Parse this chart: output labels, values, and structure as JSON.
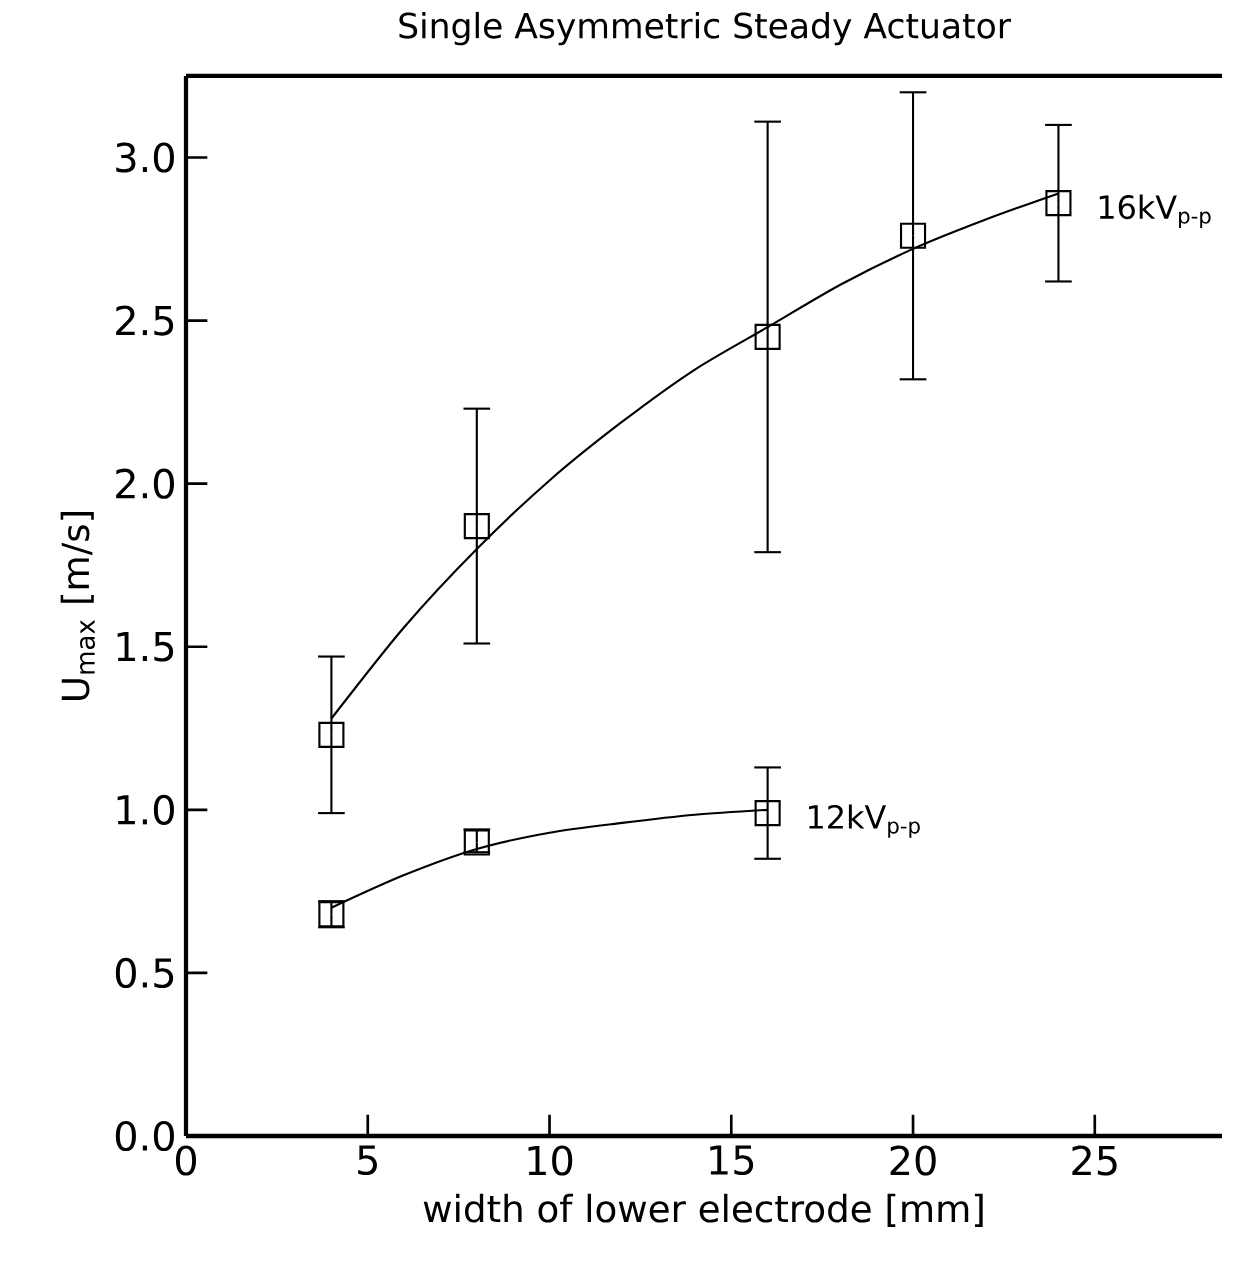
{
  "chart_data": {
    "type": "scatter",
    "title": "Single Asymmetric Steady Actuator",
    "xlabel": "width of lower electrode [mm]",
    "ylabel": "U$_{max}$ [m/s]",
    "xlim": [
      0,
      28.5
    ],
    "ylim": [
      0,
      3.25
    ],
    "xticks": [
      0,
      5,
      10,
      15,
      20,
      25
    ],
    "yticks": [
      {
        "value": 0,
        "label": "0.0"
      },
      {
        "value": 0.5,
        "label": "0.5"
      },
      {
        "value": 1,
        "label": "1.0"
      },
      {
        "value": 1.5,
        "label": "1.5"
      },
      {
        "value": 2,
        "label": "2.0"
      },
      {
        "value": 2.5,
        "label": "2.5"
      },
      {
        "value": 3,
        "label": "3.0"
      }
    ],
    "marker": "square",
    "series": [
      {
        "name": "16kV$_{p-p}$",
        "color": "#000000",
        "x": [
          4,
          8,
          16,
          20,
          24
        ],
        "values": [
          1.23,
          1.87,
          2.45,
          2.76,
          2.86
        ],
        "errors": [
          [
            0.99,
            1.47
          ],
          [
            1.51,
            2.23
          ],
          [
            1.79,
            3.11
          ],
          [
            2.32,
            3.2
          ],
          [
            2.62,
            3.1
          ]
        ]
      },
      {
        "name": "12kV$_{p-p}$",
        "color": "#000000",
        "x": [
          4,
          8,
          16
        ],
        "values": [
          0.68,
          0.9,
          0.99
        ],
        "errors": [
          [
            0.64,
            0.72
          ],
          [
            0.87,
            0.94
          ],
          [
            0.85,
            1.13
          ]
        ]
      },
      {
        "type": "line",
        "color": "#000000",
        "marker": "none",
        "x": [
          4,
          6,
          8,
          10,
          12,
          14,
          16,
          18,
          20,
          22,
          24
        ],
        "values": [
          1.28,
          1.56,
          1.8,
          2.01,
          2.19,
          2.35,
          2.48,
          2.61,
          2.72,
          2.81,
          2.89
        ]
      },
      {
        "type": "line",
        "color": "#000000",
        "marker": "none",
        "x": [
          4,
          6,
          8,
          10,
          12,
          14,
          16
        ],
        "values": [
          0.7,
          0.8,
          0.88,
          0.93,
          0.96,
          0.985,
          1.0
        ]
      }
    ]
  }
}
